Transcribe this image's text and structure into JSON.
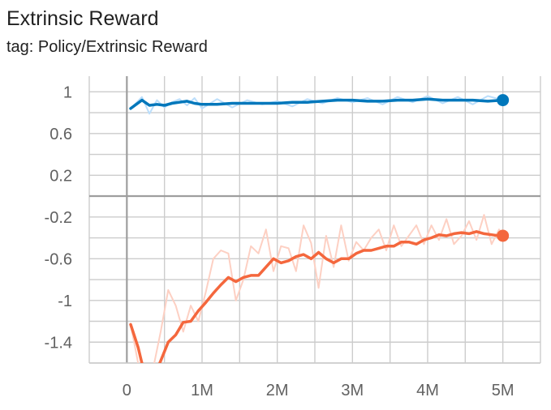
{
  "header": {
    "title": "Extrinsic Reward",
    "subtitle": "tag: Policy/Extrinsic Reward"
  },
  "chart_data": {
    "type": "line",
    "title": "Extrinsic Reward",
    "subtitle": "tag: Policy/Extrinsic Reward",
    "xlabel": "",
    "ylabel": "",
    "xlim": [
      -0.5,
      5.5
    ],
    "ylim": [
      -1.6,
      1.15
    ],
    "x_ticks": [
      {
        "value": 0,
        "label": "0"
      },
      {
        "value": 1,
        "label": "1M"
      },
      {
        "value": 2,
        "label": "2M"
      },
      {
        "value": 3,
        "label": "3M"
      },
      {
        "value": 4,
        "label": "4M"
      },
      {
        "value": 5,
        "label": "5M"
      }
    ],
    "y_ticks": [
      {
        "value": 1,
        "label": "1"
      },
      {
        "value": 0.6,
        "label": "0.6"
      },
      {
        "value": 0.2,
        "label": "0.2"
      },
      {
        "value": -0.2,
        "label": "-0.2"
      },
      {
        "value": -0.6,
        "label": "-0.6"
      },
      {
        "value": -1,
        "label": "-1"
      },
      {
        "value": -1.4,
        "label": "-1.4"
      }
    ],
    "grid": true,
    "legend": "none",
    "series": [
      {
        "color": "#0077bb",
        "raw_color": "#bbdefb",
        "x": [
          0.05,
          0.2,
          0.3,
          0.4,
          0.5,
          0.6,
          0.7,
          0.8,
          0.9,
          1.0,
          1.2,
          1.4,
          1.6,
          1.8,
          2.0,
          2.2,
          2.4,
          2.6,
          2.8,
          3.0,
          3.2,
          3.4,
          3.6,
          3.8,
          4.0,
          4.2,
          4.4,
          4.6,
          4.8,
          5.0
        ],
        "smoothed": [
          0.84,
          0.92,
          0.87,
          0.88,
          0.87,
          0.89,
          0.9,
          0.91,
          0.89,
          0.88,
          0.88,
          0.89,
          0.89,
          0.89,
          0.89,
          0.9,
          0.9,
          0.91,
          0.92,
          0.92,
          0.91,
          0.91,
          0.92,
          0.92,
          0.93,
          0.92,
          0.92,
          0.92,
          0.91,
          0.92
        ],
        "raw": [
          0.84,
          0.95,
          0.79,
          0.92,
          0.85,
          0.9,
          0.93,
          0.87,
          0.94,
          0.84,
          0.93,
          0.85,
          0.92,
          0.88,
          0.91,
          0.86,
          0.93,
          0.89,
          0.94,
          0.9,
          0.94,
          0.88,
          0.95,
          0.9,
          0.96,
          0.89,
          0.95,
          0.88,
          0.96,
          0.92
        ]
      },
      {
        "color": "#f4673d",
        "raw_color": "#fdd0c3",
        "x": [
          0.05,
          0.15,
          0.25,
          0.35,
          0.45,
          0.55,
          0.65,
          0.75,
          0.85,
          0.95,
          1.05,
          1.15,
          1.25,
          1.35,
          1.45,
          1.55,
          1.65,
          1.75,
          1.85,
          1.95,
          2.05,
          2.15,
          2.25,
          2.35,
          2.45,
          2.55,
          2.65,
          2.75,
          2.85,
          2.95,
          3.05,
          3.15,
          3.25,
          3.35,
          3.45,
          3.55,
          3.65,
          3.75,
          3.85,
          3.95,
          4.05,
          4.15,
          4.25,
          4.35,
          4.45,
          4.55,
          4.65,
          4.75,
          4.85,
          4.95,
          5.0
        ],
        "smoothed": [
          -1.23,
          -1.45,
          -1.75,
          -1.75,
          -1.58,
          -1.4,
          -1.33,
          -1.21,
          -1.2,
          -1.1,
          -1.02,
          -0.93,
          -0.85,
          -0.78,
          -0.82,
          -0.78,
          -0.76,
          -0.76,
          -0.68,
          -0.6,
          -0.64,
          -0.62,
          -0.58,
          -0.56,
          -0.6,
          -0.54,
          -0.6,
          -0.64,
          -0.6,
          -0.6,
          -0.55,
          -0.52,
          -0.52,
          -0.5,
          -0.48,
          -0.48,
          -0.44,
          -0.44,
          -0.46,
          -0.42,
          -0.4,
          -0.37,
          -0.38,
          -0.36,
          -0.35,
          -0.36,
          -0.34,
          -0.36,
          -0.37,
          -0.38,
          -0.38
        ],
        "raw": [
          -1.23,
          -1.6,
          -1.8,
          -1.65,
          -1.3,
          -0.9,
          -1.05,
          -1.3,
          -1.05,
          -1.2,
          -0.92,
          -0.6,
          -0.52,
          -0.55,
          -1.0,
          -0.8,
          -0.48,
          -0.55,
          -0.32,
          -0.72,
          -0.48,
          -0.5,
          -0.72,
          -0.28,
          -0.45,
          -0.88,
          -0.38,
          -0.68,
          -0.28,
          -0.62,
          -0.44,
          -0.52,
          -0.4,
          -0.32,
          -0.52,
          -0.28,
          -0.48,
          -0.38,
          -0.28,
          -0.46,
          -0.28,
          -0.42,
          -0.22,
          -0.46,
          -0.38,
          -0.24,
          -0.42,
          -0.18,
          -0.46,
          -0.32,
          -0.38
        ]
      }
    ]
  }
}
